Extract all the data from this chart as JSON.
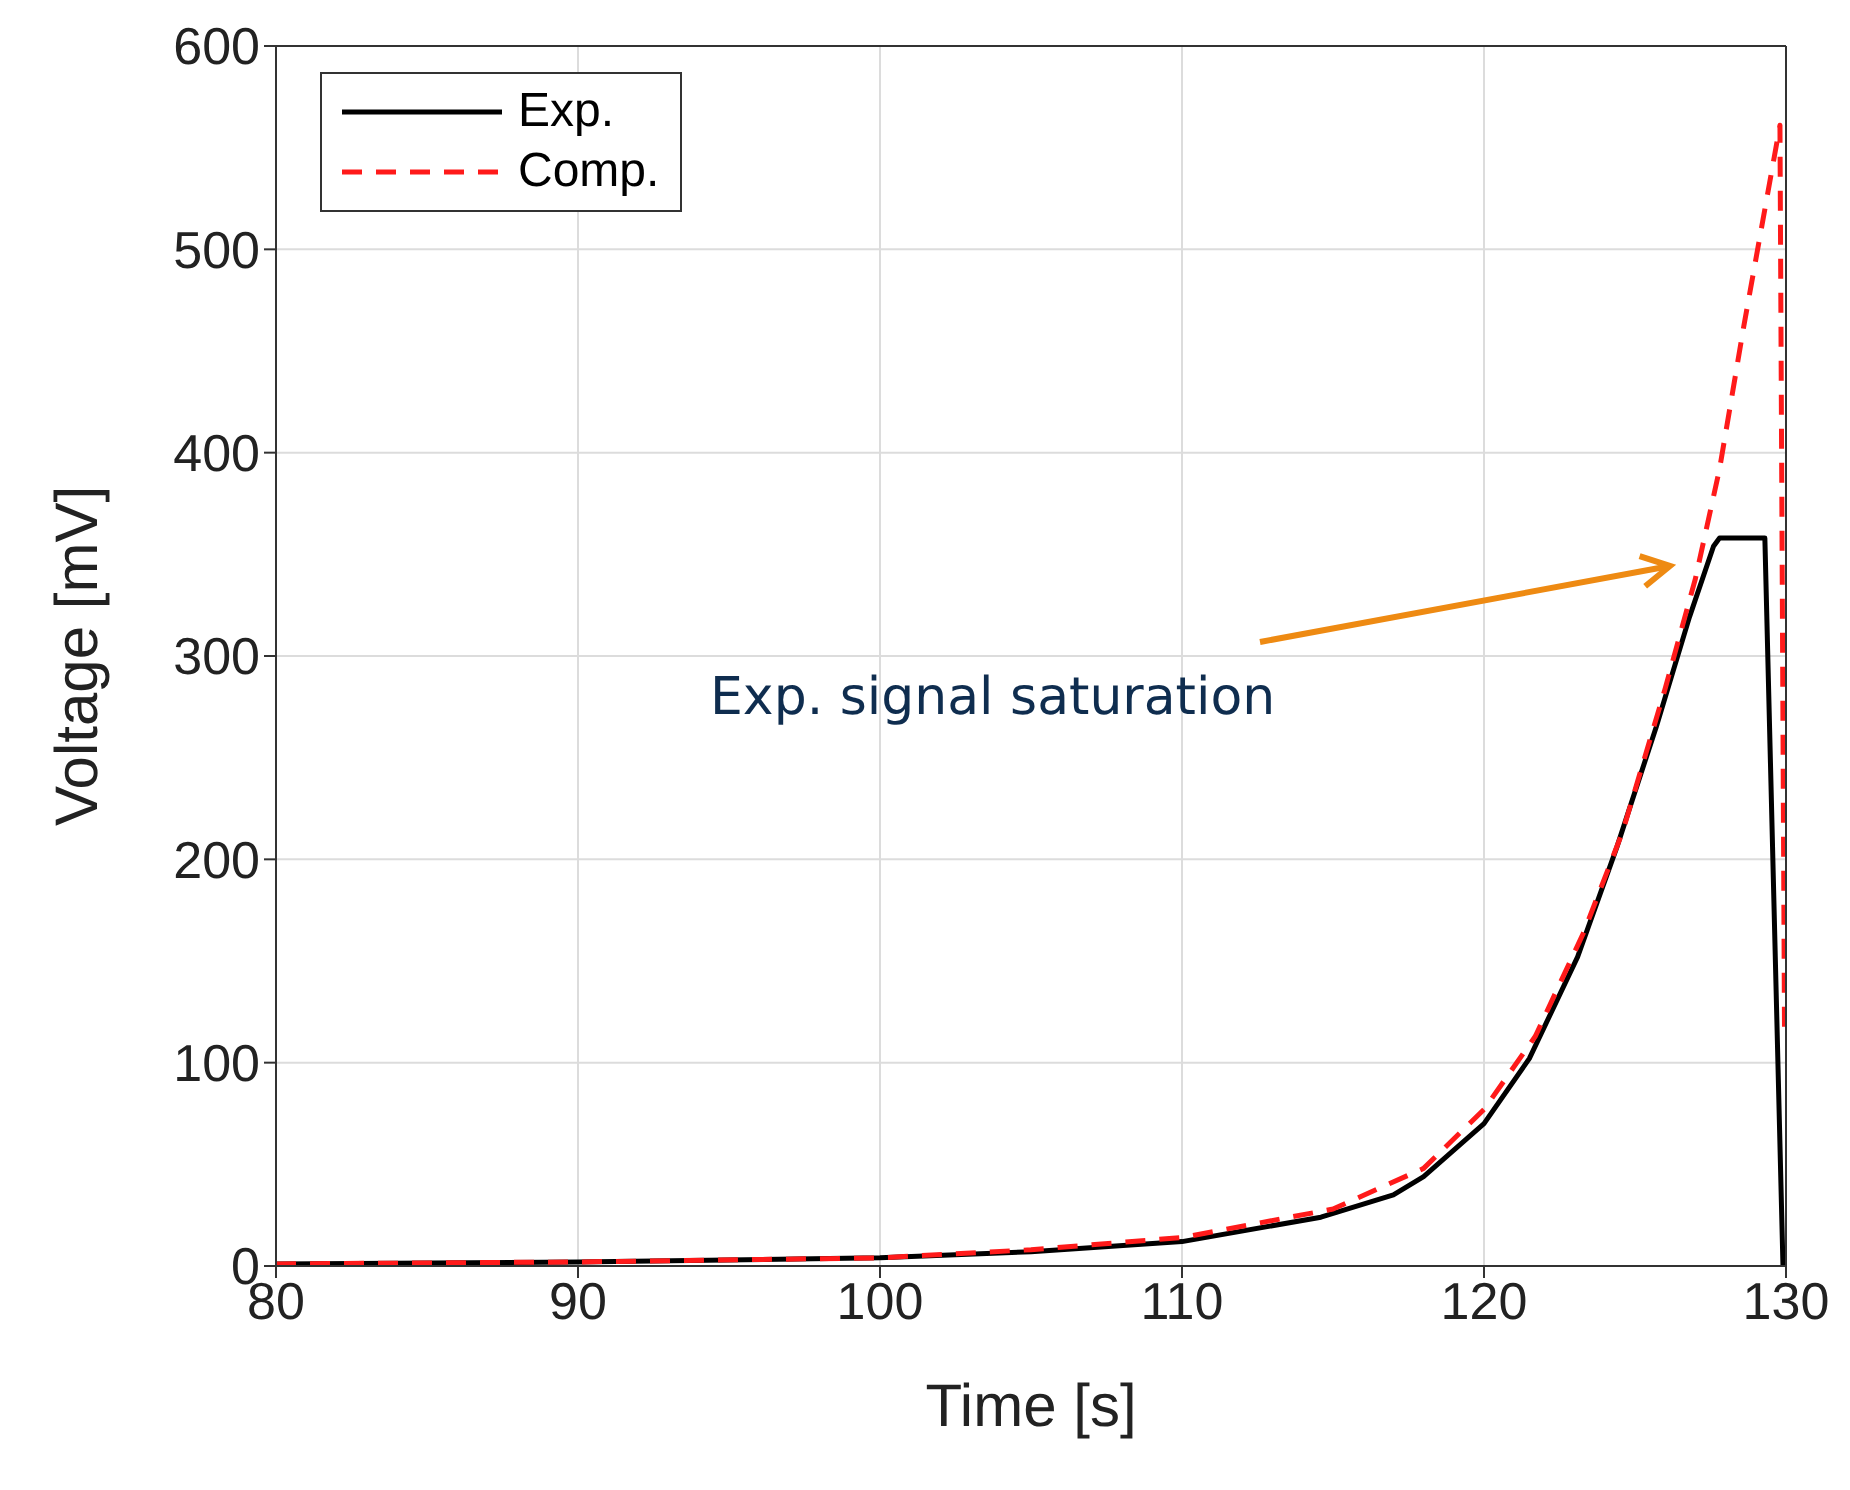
{
  "chart_data": {
    "type": "line",
    "xlabel": "Time [s]",
    "ylabel": "Voltage [mV]",
    "xlim": [
      80,
      130
    ],
    "xticks": [
      80,
      90,
      100,
      110,
      120,
      130
    ],
    "ylim": [
      0,
      600
    ],
    "yticks": [
      0,
      100,
      200,
      300,
      400,
      500,
      600
    ],
    "grid": true,
    "legend": "top left",
    "series": [
      {
        "name": "Exp.",
        "color": "#000000",
        "line_style": "solid",
        "x": [
          80,
          90,
          100,
          105,
          110,
          114.6,
          117,
          118,
          120,
          121.5,
          123.1,
          124.4,
          125.7,
          126.8,
          127.6,
          127.8,
          129.3,
          129.9
        ],
        "values": [
          1,
          2,
          4,
          7,
          12,
          24,
          35,
          44,
          70,
          102,
          152,
          206,
          265,
          319,
          354,
          358,
          358,
          0
        ]
      },
      {
        "name": "Comp.",
        "color": "#ff1a1a",
        "line_style": "dashed",
        "x": [
          80,
          90,
          100,
          105,
          110,
          115,
          118,
          120,
          121.7,
          123.3,
          124.6,
          126,
          127,
          127.8,
          128.6,
          129.8,
          129.95
        ],
        "values": [
          1,
          2,
          4,
          8,
          14,
          28,
          48,
          77,
          113,
          164,
          214,
          284,
          338,
          392,
          462,
          561,
          117
        ]
      }
    ],
    "annotations": [
      "Exp. signal saturation"
    ]
  }
}
